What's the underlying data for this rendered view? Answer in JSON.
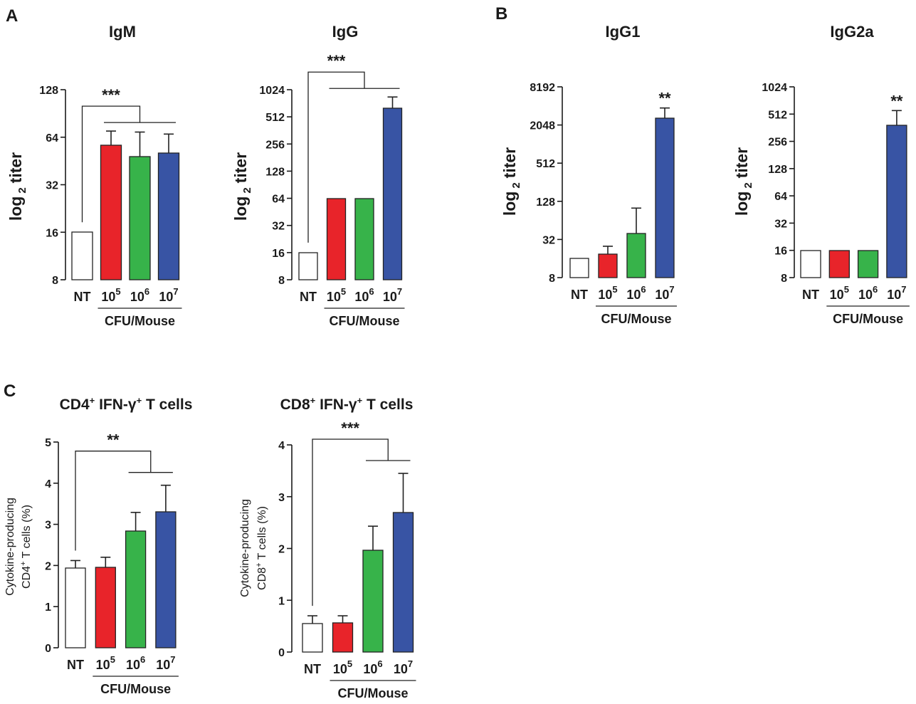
{
  "colors": {
    "NT": "#ffffff",
    "d5": "#e8242a",
    "d6": "#37b34a",
    "d7": "#3854a4",
    "axis": "#1a1a1a"
  },
  "chart_data": [
    {
      "panel": "A",
      "type": "bar",
      "title": "IgM",
      "scale": "log2",
      "ylabel_main": "log",
      "ylabel_sub": "2",
      "ylabel_rest": "titer",
      "ylim": [
        8,
        128
      ],
      "yticks": [
        8,
        16,
        32,
        64,
        128
      ],
      "ytick_labels": [
        "8",
        "16",
        "32",
        "64",
        "128"
      ],
      "categories": [
        {
          "base": "NT",
          "exp": ""
        },
        {
          "base": "10",
          "exp": "5"
        },
        {
          "base": "10",
          "exp": "6"
        },
        {
          "base": "10",
          "exp": "7"
        }
      ],
      "values": [
        16,
        57,
        48,
        51
      ],
      "errors": [
        null,
        70,
        69,
        67
      ],
      "significance": "***",
      "sig_type": "bracket",
      "xgroup_label": "CFU/Mouse"
    },
    {
      "panel": "",
      "type": "bar",
      "title": "IgG",
      "scale": "log2",
      "ylabel_main": "log",
      "ylabel_sub": "2",
      "ylabel_rest": "titer",
      "ylim": [
        8,
        1024
      ],
      "yticks": [
        8,
        16,
        32,
        64,
        128,
        256,
        512,
        1024
      ],
      "ytick_labels": [
        "8",
        "16",
        "32",
        "64",
        "128",
        "256",
        "512",
        "1024"
      ],
      "categories": [
        {
          "base": "NT",
          "exp": ""
        },
        {
          "base": "10",
          "exp": "5"
        },
        {
          "base": "10",
          "exp": "6"
        },
        {
          "base": "10",
          "exp": "7"
        }
      ],
      "values": [
        16,
        64,
        64,
        640
      ],
      "errors": [
        null,
        null,
        null,
        850
      ],
      "significance": "***",
      "sig_type": "bracket",
      "xgroup_label": "CFU/Mouse"
    },
    {
      "panel": "B",
      "type": "bar",
      "title": "IgG1",
      "scale": "log2",
      "ylabel_main": "log",
      "ylabel_sub": "2",
      "ylabel_rest": "titer",
      "ylim": [
        8,
        8192
      ],
      "yticks": [
        8,
        32,
        128,
        512,
        2048,
        8192
      ],
      "ytick_labels": [
        "8",
        "32",
        "128",
        "512",
        "2048",
        "8192"
      ],
      "categories": [
        {
          "base": "NT",
          "exp": ""
        },
        {
          "base": "10",
          "exp": "5"
        },
        {
          "base": "10",
          "exp": "6"
        },
        {
          "base": "10",
          "exp": "7"
        }
      ],
      "values": [
        16,
        19,
        40,
        2600
      ],
      "errors": [
        null,
        25,
        100,
        3800
      ],
      "significance": "**",
      "sig_type": "star",
      "sig_bar_index": 3,
      "xgroup_label": "CFU/Mouse"
    },
    {
      "panel": "",
      "type": "bar",
      "title": "IgG2a",
      "scale": "log2",
      "ylabel_main": "log",
      "ylabel_sub": "2",
      "ylabel_rest": "titer",
      "ylim": [
        8,
        1024
      ],
      "yticks": [
        8,
        16,
        32,
        64,
        128,
        256,
        512,
        1024
      ],
      "ytick_labels": [
        "8",
        "16",
        "32",
        "64",
        "128",
        "256",
        "512",
        "1024"
      ],
      "categories": [
        {
          "base": "NT",
          "exp": ""
        },
        {
          "base": "10",
          "exp": "5"
        },
        {
          "base": "10",
          "exp": "6"
        },
        {
          "base": "10",
          "exp": "7"
        }
      ],
      "values": [
        16,
        16,
        16,
        384
      ],
      "errors": [
        null,
        null,
        null,
        560
      ],
      "significance": "**",
      "sig_type": "star",
      "sig_bar_index": 3,
      "xgroup_label": "CFU/Mouse"
    },
    {
      "panel": "C",
      "type": "bar",
      "title_main": "CD4",
      "title_sup": "+",
      "title_mid": " IFN-γ",
      "title_sup2": "+",
      "title_end": " T cells",
      "scale": "linear",
      "ylabel_line1": "Cytokine-producing",
      "ylabel_line2_main": "CD4",
      "ylabel_line2_sup": "+",
      "ylabel_line2_end": " T cells (%)",
      "ylim": [
        0,
        5
      ],
      "yticks": [
        0,
        1,
        2,
        3,
        4,
        5
      ],
      "ytick_labels": [
        "0",
        "1",
        "2",
        "3",
        "4",
        "5"
      ],
      "categories": [
        {
          "base": "NT",
          "exp": ""
        },
        {
          "base": "10",
          "exp": "5"
        },
        {
          "base": "10",
          "exp": "6"
        },
        {
          "base": "10",
          "exp": "7"
        }
      ],
      "values": [
        1.93,
        1.95,
        2.83,
        3.3
      ],
      "errors": [
        2.12,
        2.2,
        3.29,
        3.95
      ],
      "significance": "**",
      "sig_type": "bracket2",
      "xgroup_label": "CFU/Mouse"
    },
    {
      "panel": "",
      "type": "bar",
      "title_main": "CD8",
      "title_sup": "+",
      "title_mid": " IFN-γ",
      "title_sup2": "+",
      "title_end": " T cells",
      "scale": "linear",
      "ylabel_line1": "Cytokine-producing",
      "ylabel_line2_main": "CD8",
      "ylabel_line2_sup": "+",
      "ylabel_line2_end": " T cells (%)",
      "ylim": [
        0,
        4
      ],
      "yticks": [
        0,
        1,
        2,
        3,
        4
      ],
      "ytick_labels": [
        "0",
        "1",
        "2",
        "3",
        "4"
      ],
      "categories": [
        {
          "base": "NT",
          "exp": ""
        },
        {
          "base": "10",
          "exp": "5"
        },
        {
          "base": "10",
          "exp": "6"
        },
        {
          "base": "10",
          "exp": "7"
        }
      ],
      "values": [
        0.55,
        0.57,
        1.97,
        2.7
      ],
      "errors": [
        0.7,
        0.7,
        2.43,
        3.45
      ],
      "significance": "***",
      "sig_type": "bracket2",
      "xgroup_label": "CFU/Mouse"
    }
  ]
}
